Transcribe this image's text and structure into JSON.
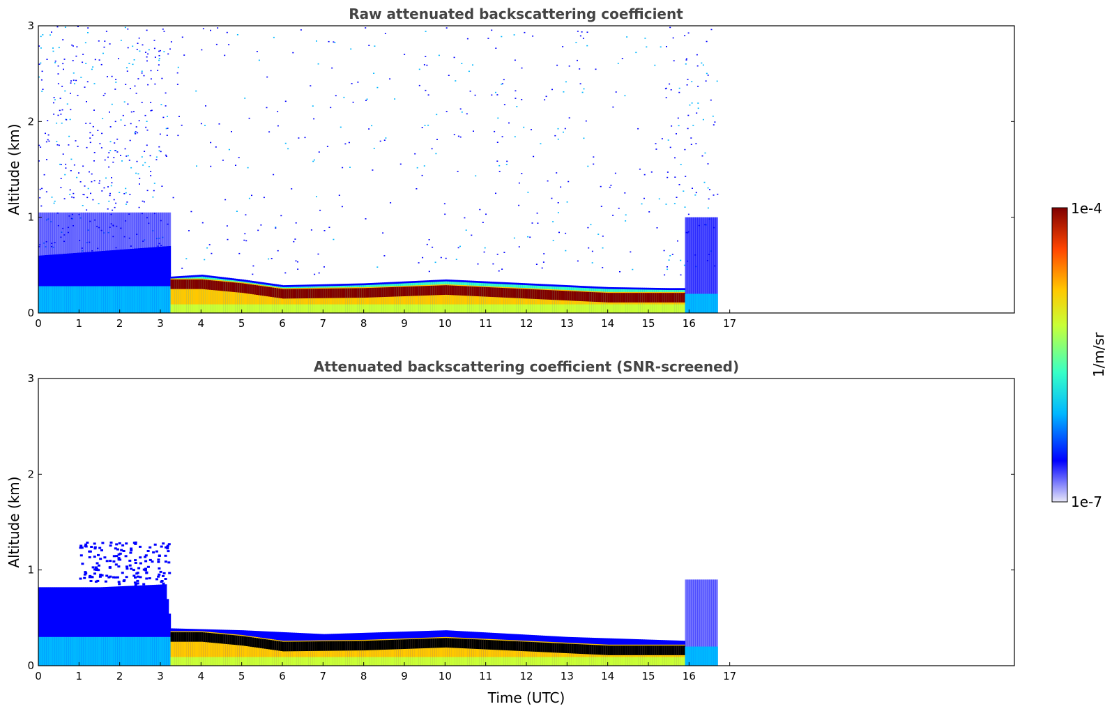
{
  "colors": {
    "colormap": [
      "#e8e8f8",
      "#0000ff",
      "#00b7ff",
      "#37ffc7",
      "#c8ff37",
      "#ffc800",
      "#ff4500",
      "#7f0000"
    ],
    "screened_peak": "#000000",
    "frame": "#000000"
  },
  "chart_data": [
    {
      "type": "heatmap",
      "title": "Raw attenuated backscattering coefficient",
      "xlabel": "",
      "ylabel": "Altitude (km)",
      "xlim": [
        0,
        24
      ],
      "ylim": [
        0,
        3
      ],
      "xticks": [
        0,
        1,
        2,
        3,
        4,
        5,
        6,
        7,
        8,
        9,
        10,
        11,
        12,
        13,
        14,
        15,
        16,
        17
      ],
      "xtick_labels": [
        "0",
        "1",
        "2",
        "3",
        "4",
        "5",
        "6",
        "7",
        "8",
        "9",
        "10",
        "11",
        "12",
        "13",
        "14",
        "15",
        "16",
        "17"
      ],
      "yticks": [
        0,
        1,
        2,
        3
      ],
      "ytick_labels": [
        "0",
        "1",
        "2",
        "3"
      ],
      "data_extent_hours": [
        0,
        16.7
      ],
      "boundary_layer_top_km": [
        {
          "t": 0,
          "z": 0.6
        },
        {
          "t": 3.2,
          "z": 0.7
        },
        {
          "t": 3.25,
          "z": 0.38
        },
        {
          "t": 4,
          "z": 0.4
        },
        {
          "t": 5,
          "z": 0.35
        },
        {
          "t": 6,
          "z": 0.29
        },
        {
          "t": 8,
          "z": 0.31
        },
        {
          "t": 10,
          "z": 0.35
        },
        {
          "t": 12,
          "z": 0.31
        },
        {
          "t": 14,
          "z": 0.27
        },
        {
          "t": 15.5,
          "z": 0.26
        }
      ],
      "peak_layer_km": [
        {
          "t": 3.3,
          "z": 0.3
        },
        {
          "t": 4,
          "z": 0.3
        },
        {
          "t": 5,
          "z": 0.26
        },
        {
          "t": 6,
          "z": 0.2
        },
        {
          "t": 8,
          "z": 0.21
        },
        {
          "t": 10,
          "z": 0.24
        },
        {
          "t": 12,
          "z": 0.2
        },
        {
          "t": 14,
          "z": 0.16
        },
        {
          "t": 15.9,
          "z": 0.16
        }
      ],
      "grid": false
    },
    {
      "type": "heatmap",
      "title": "Attenuated backscattering coefficient (SNR-screened)",
      "xlabel": "Time (UTC)",
      "ylabel": "Altitude (km)",
      "xlim": [
        0,
        24
      ],
      "ylim": [
        0,
        3
      ],
      "xticks": [
        0,
        1,
        2,
        3,
        4,
        5,
        6,
        7,
        8,
        9,
        10,
        11,
        12,
        13,
        14,
        15,
        16,
        17
      ],
      "xtick_labels": [
        "0",
        "1",
        "2",
        "3",
        "4",
        "5",
        "6",
        "7",
        "8",
        "9",
        "10",
        "11",
        "12",
        "13",
        "14",
        "15",
        "16",
        "17"
      ],
      "yticks": [
        0,
        1,
        2,
        3
      ],
      "ytick_labels": [
        "0",
        "1",
        "2",
        "3"
      ],
      "data_extent_hours": [
        0,
        16.7
      ],
      "screened_top_km": [
        {
          "t": 0,
          "z": 0.82
        },
        {
          "t": 1.5,
          "z": 0.82
        },
        {
          "t": 3.1,
          "z": 0.85
        },
        {
          "t": 3.25,
          "z": 0.39
        },
        {
          "t": 5,
          "z": 0.37
        },
        {
          "t": 7,
          "z": 0.33
        },
        {
          "t": 10,
          "z": 0.37
        },
        {
          "t": 13,
          "z": 0.3
        },
        {
          "t": 15.9,
          "z": 0.26
        }
      ],
      "grid": false
    }
  ],
  "colorbar": {
    "label": "1/m/sr",
    "max_label": "1e-4",
    "min_label": "1e-7",
    "range": [
      1e-07,
      0.0001
    ],
    "scale": "log"
  }
}
